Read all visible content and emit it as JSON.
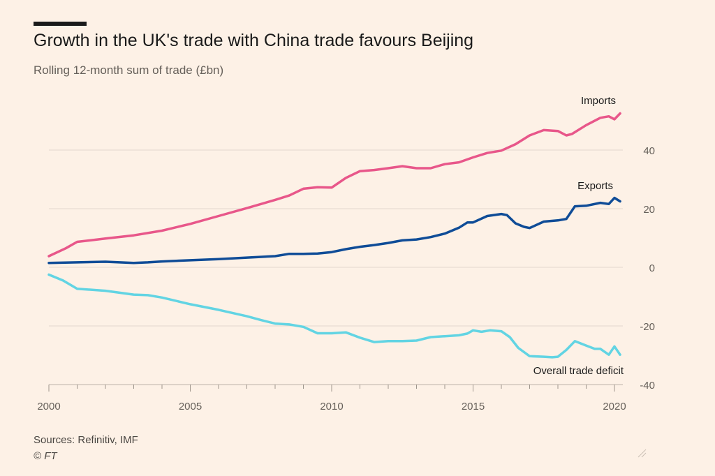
{
  "header": {
    "title": "Growth in the UK's trade with China trade favours Beijing",
    "subtitle": "Rolling 12-month sum of trade (£bn)"
  },
  "footer": {
    "sources": "Sources: Refinitiv, IMF",
    "credit": "© FT"
  },
  "colors": {
    "background": "#fdf1e6",
    "imports": "#e8578a",
    "exports": "#0f4c97",
    "deficit": "#62d4e3",
    "grid": "#e3d8cd",
    "axis_text": "#66605a"
  },
  "chart_data": {
    "type": "line",
    "title": "Growth in the UK's trade with China trade favours Beijing",
    "subtitle": "Rolling 12-month sum of trade (£bn)",
    "xlabel": "",
    "ylabel": "",
    "xlim": [
      2000,
      2020.25
    ],
    "ylim": [
      -40,
      52
    ],
    "x_ticks": [
      2000,
      2005,
      2010,
      2015,
      2020
    ],
    "x_tick_labels": [
      "2000",
      "2005",
      "2010",
      "2015",
      "2020"
    ],
    "y_ticks": [
      40,
      20,
      0,
      -20,
      -40
    ],
    "y_tick_labels": [
      "40",
      "20",
      "0",
      "-20",
      "-40"
    ],
    "y_axis_side": "right",
    "grid": true,
    "legend": "inline labels",
    "series": [
      {
        "name": "Imports",
        "color": "#e8578a",
        "x": [
          2000,
          2000.6,
          2001,
          2002,
          2003,
          2004,
          2005,
          2006,
          2007,
          2008,
          2008.5,
          2009,
          2009.5,
          2010,
          2010.5,
          2011,
          2011.5,
          2012,
          2012.5,
          2013,
          2013.5,
          2014,
          2014.5,
          2015,
          2015.5,
          2016,
          2016.5,
          2017,
          2017.5,
          2018,
          2018.3,
          2018.5,
          2019,
          2019.5,
          2019.8,
          2020,
          2020.2
        ],
        "y": [
          3.8,
          6.5,
          8.7,
          9.8,
          10.9,
          12.5,
          14.8,
          17.5,
          20.2,
          23,
          24.5,
          26.8,
          27.3,
          27.2,
          30.5,
          32.8,
          33.2,
          33.8,
          34.5,
          33.8,
          33.8,
          35.2,
          35.8,
          37.5,
          39,
          39.8,
          42,
          45,
          46.8,
          46.5,
          45,
          45.5,
          48.5,
          51,
          51.5,
          50.5,
          52.5
        ]
      },
      {
        "name": "Exports",
        "color": "#0f4c97",
        "x": [
          2000,
          2001,
          2002,
          2002.5,
          2003,
          2003.5,
          2004,
          2005,
          2006,
          2007,
          2008,
          2008.5,
          2009,
          2009.5,
          2010,
          2010.5,
          2011,
          2011.5,
          2012,
          2012.5,
          2013,
          2013.5,
          2014,
          2014.5,
          2014.8,
          2015,
          2015.5,
          2016,
          2016.2,
          2016.5,
          2016.8,
          2017,
          2017.5,
          2018,
          2018.3,
          2018.6,
          2019,
          2019.5,
          2019.8,
          2020,
          2020.2
        ],
        "y": [
          1.5,
          1.7,
          1.9,
          1.7,
          1.5,
          1.7,
          2,
          2.4,
          2.8,
          3.3,
          3.8,
          4.6,
          4.6,
          4.7,
          5.2,
          6.2,
          7,
          7.6,
          8.3,
          9.2,
          9.5,
          10.3,
          11.5,
          13.5,
          15.3,
          15.3,
          17.5,
          18.2,
          17.8,
          15,
          13.8,
          13.4,
          15.6,
          16,
          16.5,
          20.8,
          21,
          22,
          21.6,
          23.7,
          22.5
        ]
      },
      {
        "name": "Overall trade deficit",
        "color": "#62d4e3",
        "x": [
          2000,
          2000.5,
          2001,
          2002,
          2003,
          2003.5,
          2004,
          2005,
          2006,
          2007,
          2007.5,
          2008,
          2008.5,
          2009,
          2009.5,
          2010,
          2010.5,
          2011,
          2011.5,
          2012,
          2012.5,
          2013,
          2013.5,
          2014,
          2014.5,
          2014.8,
          2015,
          2015.3,
          2015.6,
          2016,
          2016.3,
          2016.6,
          2017,
          2017.5,
          2017.8,
          2018,
          2018.3,
          2018.6,
          2019,
          2019.3,
          2019.5,
          2019.8,
          2020,
          2020.2
        ],
        "y": [
          -2.5,
          -4.5,
          -7.3,
          -8,
          -9.3,
          -9.5,
          -10.3,
          -12.6,
          -14.5,
          -16.7,
          -18,
          -19.2,
          -19.5,
          -20.3,
          -22.5,
          -22.5,
          -22.2,
          -24,
          -25.5,
          -25.2,
          -25.2,
          -25,
          -23.8,
          -23.5,
          -23.2,
          -22.6,
          -21.5,
          -22,
          -21.5,
          -21.8,
          -23.8,
          -27.5,
          -30.3,
          -30.5,
          -30.7,
          -30.5,
          -28.2,
          -25.2,
          -26.7,
          -27.8,
          -27.8,
          -29.8,
          -27,
          -29.8
        ]
      }
    ],
    "annotations": [
      {
        "text": "Imports",
        "series": "Imports"
      },
      {
        "text": "Exports",
        "series": "Exports"
      },
      {
        "text": "Overall trade deficit",
        "series": "Overall trade deficit"
      }
    ]
  }
}
